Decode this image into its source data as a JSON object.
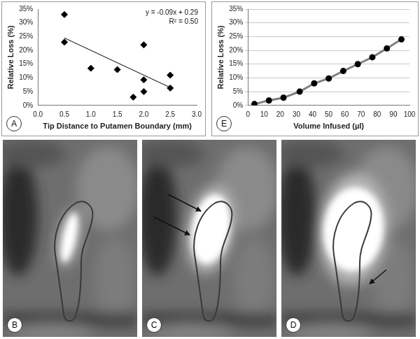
{
  "chart_data": [
    {
      "type": "scatter",
      "panel": "A",
      "x_label": "Tip Distance to Putamen Boundary (mm)",
      "y_label": "Relative Loss (%)",
      "annotations": [
        "y = -0.09x + 0.29",
        "R² = 0.50"
      ],
      "xlim": [
        0,
        3
      ],
      "xticks": [
        {
          "value": 0,
          "label": "0.0"
        },
        0.5,
        {
          "value": 1,
          "label": "1.0"
        },
        1.5,
        {
          "value": 2,
          "label": "2.0"
        },
        2.5,
        {
          "value": 3,
          "label": "3.0"
        }
      ],
      "ylim": [
        0,
        35
      ],
      "yticks": [
        {
          "value": 0,
          "label": "0%"
        },
        {
          "value": 5,
          "label": "5%"
        },
        {
          "value": 10,
          "label": "10%"
        },
        {
          "value": 15,
          "label": "15%"
        },
        {
          "value": 20,
          "label": "20%"
        },
        {
          "value": 25,
          "label": "25%"
        },
        {
          "value": 30,
          "label": "30%"
        },
        {
          "value": 35,
          "label": "35%"
        }
      ],
      "grid": false,
      "series": [
        {
          "type": "scatter",
          "color": "#000000",
          "marker": "diamond",
          "x": [
            0.5,
            0.5,
            1.0,
            1.5,
            1.8,
            2.0,
            2.0,
            2.0,
            2.5,
            2.5
          ],
          "values": [
            33,
            23,
            13.5,
            13,
            3,
            22,
            9.3,
            5,
            11,
            6.3
          ]
        },
        {
          "type": "line",
          "color": "#000000",
          "marker": "none",
          "line_style": "solid",
          "x": [
            0.5,
            2.5
          ],
          "values": [
            24.5,
            6.5
          ]
        }
      ]
    },
    {
      "type": "line",
      "panel": "E",
      "x_label": "Volume Infused (µl)",
      "y_label": "Relative Loss (%)",
      "xlim": [
        0,
        100
      ],
      "xticks": [
        0,
        10,
        20,
        30,
        40,
        50,
        60,
        70,
        80,
        90,
        100
      ],
      "ylim": [
        0,
        35
      ],
      "yticks": [
        {
          "value": 0,
          "label": "0%"
        },
        {
          "value": 5,
          "label": "5%"
        },
        {
          "value": 10,
          "label": "10%"
        },
        {
          "value": 15,
          "label": "15%"
        },
        {
          "value": 20,
          "label": "20%"
        },
        {
          "value": 25,
          "label": "25%"
        },
        {
          "value": 30,
          "label": "30%"
        },
        {
          "value": 35,
          "label": "35%"
        }
      ],
      "grid": true,
      "series": [
        {
          "type": "line",
          "color": "#7f7f7f",
          "marker": "circle",
          "line_style": "solid",
          "x": [
            4,
            13,
            22,
            32,
            41,
            50,
            59,
            68,
            77,
            86,
            95
          ],
          "values": [
            0.5,
            1.8,
            2.8,
            5,
            8,
            9.8,
            12.5,
            15,
            17.5,
            20.7,
            24
          ]
        }
      ]
    }
  ],
  "panels": [
    {
      "label": "B"
    },
    {
      "label": "C"
    },
    {
      "label": "D"
    }
  ]
}
